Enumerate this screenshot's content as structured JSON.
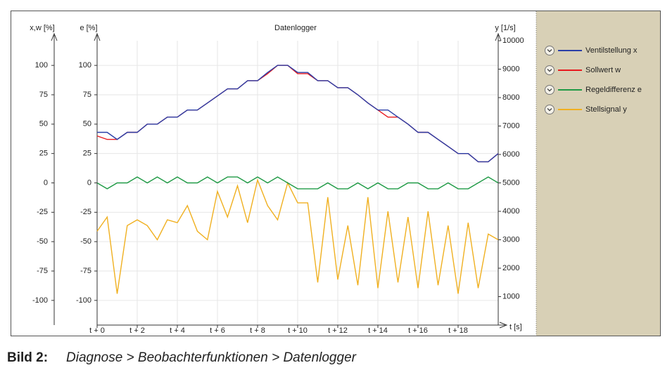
{
  "chart_data": {
    "type": "line",
    "title": "Datenlogger",
    "y_label": "x,w [%]",
    "e_label": "e [%]",
    "y2_label": "y [1/s]",
    "x_label": "t [s]",
    "x": [
      0,
      0.5,
      1,
      1.5,
      2,
      2.5,
      3,
      3.5,
      4,
      4.5,
      5,
      5.5,
      6,
      6.5,
      7,
      7.5,
      8,
      8.5,
      9,
      9.5,
      10,
      10.5,
      11,
      11.5,
      12,
      12.5,
      13,
      13.5,
      14,
      14.5,
      15,
      15.5,
      16,
      16.5,
      17,
      17.5,
      18,
      18.5,
      19,
      19.5,
      20
    ],
    "xlim": [
      0,
      20
    ],
    "xticks": [
      {
        "value": 0,
        "label": "t + 0"
      },
      {
        "value": 2,
        "label": "t + 2"
      },
      {
        "value": 4,
        "label": "t + 4"
      },
      {
        "value": 6,
        "label": "t + 6"
      },
      {
        "value": 8,
        "label": "t + 8"
      },
      {
        "value": 10,
        "label": "t + 10"
      },
      {
        "value": 12,
        "label": "t + 12"
      },
      {
        "value": 14,
        "label": "t + 14"
      },
      {
        "value": 16,
        "label": "t + 16"
      },
      {
        "value": 18,
        "label": "t + 18"
      }
    ],
    "ylim": [
      -121,
      121
    ],
    "yticks": [
      -100,
      -75,
      -50,
      -25,
      0,
      25,
      50,
      75,
      100
    ],
    "y2lim": [
      0,
      10000
    ],
    "y2ticks": [
      1000,
      2000,
      3000,
      4000,
      5000,
      6000,
      7000,
      8000,
      9000,
      10000
    ],
    "grid": true,
    "series": [
      {
        "name": "Ventilstellung x",
        "color": "#2a3fa8",
        "values": [
          43,
          43,
          37,
          43,
          43,
          50,
          50,
          56,
          56,
          62,
          62,
          68,
          74,
          80,
          80,
          87,
          87,
          94,
          100,
          100,
          94,
          94,
          87,
          87,
          81,
          81,
          75,
          68,
          62,
          62,
          56,
          50,
          43,
          43,
          37,
          31,
          25,
          25,
          18,
          18,
          25
        ]
      },
      {
        "name": "Sollwert w",
        "color": "#e8191e",
        "values": [
          40,
          37,
          37,
          43,
          43,
          50,
          50,
          56,
          56,
          62,
          62,
          68,
          74,
          80,
          80,
          87,
          87,
          93,
          100,
          100,
          93,
          93,
          87,
          87,
          81,
          81,
          75,
          68,
          62,
          56,
          56,
          50,
          43,
          43,
          37,
          31,
          25,
          25,
          18,
          18,
          25
        ]
      },
      {
        "name": "Regeldifferenz e",
        "color": "#1f9a45",
        "values": [
          0,
          -5,
          0,
          0,
          5,
          0,
          5,
          0,
          5,
          0,
          0,
          5,
          0,
          5,
          5,
          0,
          5,
          0,
          5,
          0,
          -5,
          -5,
          -5,
          0,
          -5,
          -5,
          0,
          -5,
          0,
          -5,
          -5,
          0,
          0,
          -5,
          -5,
          0,
          -5,
          -5,
          0,
          5,
          0
        ]
      },
      {
        "name": "Stellsignal y",
        "color": "#f0b020",
        "axis": "y2",
        "values": [
          3300,
          3800,
          1100,
          3500,
          3700,
          3500,
          3000,
          3700,
          3600,
          4200,
          3300,
          3000,
          4700,
          3800,
          4900,
          3600,
          5100,
          4200,
          3700,
          5000,
          4300,
          4300,
          1500,
          4500,
          1600,
          3500,
          1400,
          4500,
          1300,
          4000,
          1500,
          3800,
          1300,
          4000,
          1400,
          3500,
          1100,
          3600,
          1300,
          3200,
          3000
        ]
      }
    ]
  },
  "caption": {
    "label": "Bild 2:",
    "text": "Diagnose > Beobachterfunktionen > Datenlogger"
  }
}
